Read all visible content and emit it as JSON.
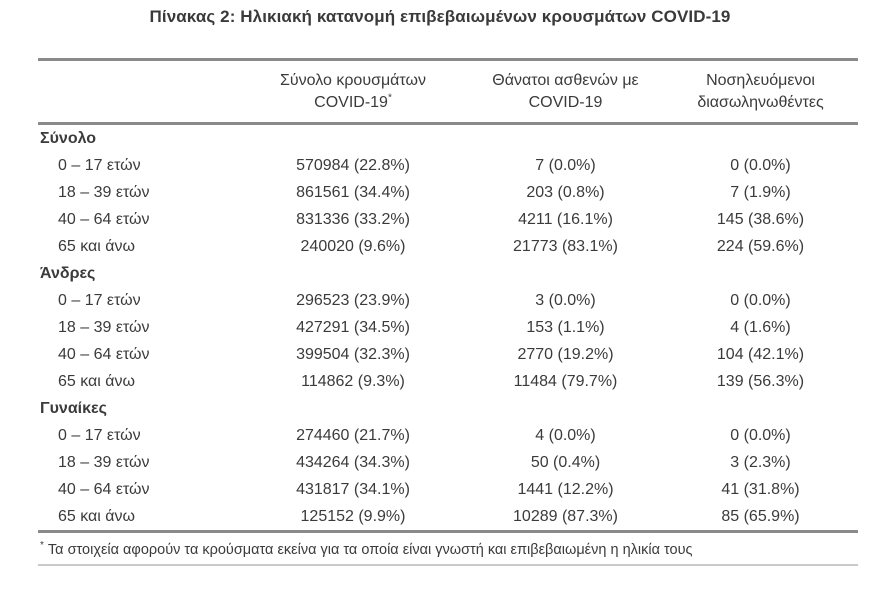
{
  "title": "Πίνακας 2: Ηλικιακή κατανομή επιβεβαιωμένων κρουσμάτων COVID-19",
  "table": {
    "col_headers": {
      "cases": {
        "line1": "Σύνολο κρουσμάτων",
        "line2": "COVID-19",
        "sup": "*"
      },
      "deaths": {
        "line1": "Θάνατοι ασθενών με",
        "line2": "COVID-19"
      },
      "intubated": {
        "line1": "Νοσηλευόμενοι",
        "line2": "διασωληνωθέντες"
      }
    },
    "sections": [
      {
        "label": "Σύνολο",
        "rows": [
          {
            "label": "0 – 17 ετών",
            "cases": "570984 (22.8%)",
            "deaths": "7 (0.0%)",
            "intubated": "0 (0.0%)"
          },
          {
            "label": "18 – 39 ετών",
            "cases": "861561 (34.4%)",
            "deaths": "203 (0.8%)",
            "intubated": "7 (1.9%)"
          },
          {
            "label": "40 – 64 ετών",
            "cases": "831336 (33.2%)",
            "deaths": "4211 (16.1%)",
            "intubated": "145 (38.6%)"
          },
          {
            "label": "65 και άνω",
            "cases": "240020 (9.6%)",
            "deaths": "21773 (83.1%)",
            "intubated": "224 (59.6%)"
          }
        ]
      },
      {
        "label": "Άνδρες",
        "rows": [
          {
            "label": "0 – 17 ετών",
            "cases": "296523 (23.9%)",
            "deaths": "3 (0.0%)",
            "intubated": "0 (0.0%)"
          },
          {
            "label": "18 – 39 ετών",
            "cases": "427291 (34.5%)",
            "deaths": "153 (1.1%)",
            "intubated": "4 (1.6%)"
          },
          {
            "label": "40 – 64 ετών",
            "cases": "399504 (32.3%)",
            "deaths": "2770 (19.2%)",
            "intubated": "104 (42.1%)"
          },
          {
            "label": "65 και άνω",
            "cases": "114862 (9.3%)",
            "deaths": "11484 (79.7%)",
            "intubated": "139 (56.3%)"
          }
        ]
      },
      {
        "label": "Γυναίκες",
        "rows": [
          {
            "label": "0 – 17 ετών",
            "cases": "274460 (21.7%)",
            "deaths": "4 (0.0%)",
            "intubated": "0 (0.0%)"
          },
          {
            "label": "18 – 39 ετών",
            "cases": "434264 (34.3%)",
            "deaths": "50 (0.4%)",
            "intubated": "3 (2.3%)"
          },
          {
            "label": "40 – 64 ετών",
            "cases": "431817 (34.1%)",
            "deaths": "1441 (12.2%)",
            "intubated": "41 (31.8%)"
          },
          {
            "label": "65 και άνω",
            "cases": "125152 (9.9%)",
            "deaths": "10289 (87.3%)",
            "intubated": "85 (65.9%)"
          }
        ]
      }
    ],
    "footnote": {
      "sup": "*",
      "text": "Τα στοιχεία αφορούν τα κρούσματα εκείνα για τα οποία είναι γνωστή και επιβεβαιωμένη η ηλικία τους"
    }
  },
  "colors": {
    "text": "#3b3b3b",
    "rule": "#8a8a8a",
    "rule_light": "#c9c9c9"
  }
}
